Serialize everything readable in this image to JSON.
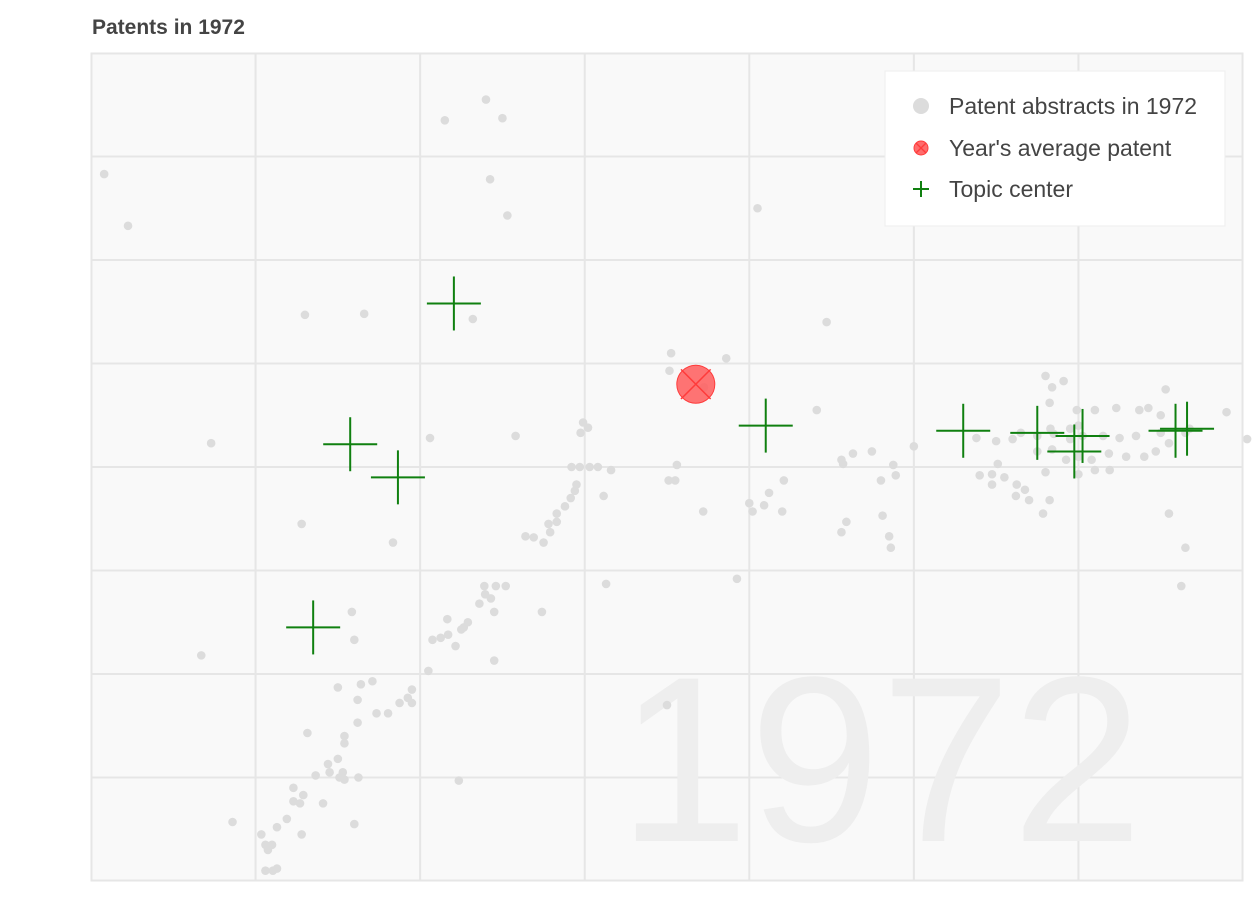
{
  "chart_data": {
    "type": "scatter",
    "title": "Patents in 1972",
    "watermark": "1972",
    "xlim": [
      0,
      14
    ],
    "ylim": [
      0,
      8
    ],
    "grid": true,
    "legend_position": "top-right",
    "colors": {
      "background": "#f9f9f9",
      "grid": "#e6e6e6",
      "patent": "#dcdcdc",
      "average_fill": "#ff5c5c",
      "average_stroke": "#ff3b3b",
      "topic": "#108010",
      "watermark": "#eeeeee",
      "title": "#444444"
    },
    "series": [
      {
        "name": "Patent abstracts in 1972",
        "marker": "dot",
        "points": [
          [
            0.16,
            6.83
          ],
          [
            0.45,
            6.33
          ],
          [
            2.6,
            5.47
          ],
          [
            3.32,
            5.48
          ],
          [
            4.3,
            7.35
          ],
          [
            4.8,
            7.55
          ],
          [
            5.0,
            7.37
          ],
          [
            4.85,
            6.78
          ],
          [
            5.06,
            6.43
          ],
          [
            4.64,
            5.43
          ],
          [
            8.1,
            6.5
          ],
          [
            8.94,
            5.4
          ],
          [
            1.46,
            4.23
          ],
          [
            4.12,
            4.28
          ],
          [
            5.16,
            4.3
          ],
          [
            5.98,
            4.43
          ],
          [
            5.95,
            4.33
          ],
          [
            6.04,
            4.38
          ],
          [
            7.03,
            4.93
          ],
          [
            7.45,
            4.77
          ],
          [
            8.82,
            4.55
          ],
          [
            7.12,
            4.02
          ],
          [
            7.02,
            3.87
          ],
          [
            7.1,
            3.87
          ],
          [
            5.84,
            4.0
          ],
          [
            5.94,
            4.0
          ],
          [
            6.06,
            4.0
          ],
          [
            6.16,
            4.0
          ],
          [
            6.32,
            3.97
          ],
          [
            5.9,
            3.83
          ],
          [
            5.88,
            3.77
          ],
          [
            6.23,
            3.72
          ],
          [
            5.83,
            3.7
          ],
          [
            5.76,
            3.62
          ],
          [
            5.66,
            3.55
          ],
          [
            5.56,
            3.45
          ],
          [
            5.66,
            3.47
          ],
          [
            5.58,
            3.37
          ],
          [
            5.28,
            3.33
          ],
          [
            5.38,
            3.32
          ],
          [
            5.5,
            3.27
          ],
          [
            7.44,
            3.57
          ],
          [
            8.0,
            3.65
          ],
          [
            8.18,
            3.63
          ],
          [
            8.42,
            3.87
          ],
          [
            8.24,
            3.75
          ],
          [
            8.4,
            3.57
          ],
          [
            9.26,
            4.13
          ],
          [
            9.12,
            4.07
          ],
          [
            9.14,
            4.03
          ],
          [
            9.49,
            4.15
          ],
          [
            10.0,
            4.2
          ],
          [
            9.75,
            4.02
          ],
          [
            9.78,
            3.92
          ],
          [
            9.6,
            3.87
          ],
          [
            9.62,
            3.53
          ],
          [
            9.72,
            3.22
          ],
          [
            9.7,
            3.33
          ],
          [
            8.04,
            3.57
          ],
          [
            7.05,
            5.1
          ],
          [
            9.12,
            3.37
          ],
          [
            9.18,
            3.47
          ],
          [
            3.67,
            3.27
          ],
          [
            2.56,
            3.45
          ],
          [
            6.26,
            2.87
          ],
          [
            7.85,
            2.92
          ],
          [
            4.78,
            2.85
          ],
          [
            4.92,
            2.85
          ],
          [
            5.04,
            2.85
          ],
          [
            4.86,
            2.73
          ],
          [
            4.79,
            2.77
          ],
          [
            4.72,
            2.68
          ],
          [
            4.9,
            2.6
          ],
          [
            5.48,
            2.6
          ],
          [
            4.33,
            2.53
          ],
          [
            4.58,
            2.5
          ],
          [
            4.5,
            2.43
          ],
          [
            4.53,
            2.45
          ],
          [
            4.25,
            2.35
          ],
          [
            4.15,
            2.33
          ],
          [
            4.34,
            2.38
          ],
          [
            4.43,
            2.27
          ],
          [
            4.9,
            2.13
          ],
          [
            4.1,
            2.03
          ],
          [
            3.17,
            2.6
          ],
          [
            3.2,
            2.33
          ],
          [
            1.34,
            2.18
          ],
          [
            3.0,
            1.87
          ],
          [
            3.28,
            1.9
          ],
          [
            3.42,
            1.93
          ],
          [
            3.24,
            1.75
          ],
          [
            3.9,
            1.85
          ],
          [
            3.9,
            1.72
          ],
          [
            3.85,
            1.77
          ],
          [
            3.75,
            1.72
          ],
          [
            3.61,
            1.62
          ],
          [
            3.47,
            1.62
          ],
          [
            3.24,
            1.53
          ],
          [
            3.08,
            1.4
          ],
          [
            3.08,
            1.33
          ],
          [
            2.63,
            1.43
          ],
          [
            3.0,
            1.18
          ],
          [
            2.88,
            1.13
          ],
          [
            3.06,
            1.05
          ],
          [
            3.02,
            1.0
          ],
          [
            3.08,
            0.98
          ],
          [
            3.25,
            1.0
          ],
          [
            2.9,
            1.05
          ],
          [
            2.73,
            1.02
          ],
          [
            2.46,
            0.9
          ],
          [
            2.46,
            0.77
          ],
          [
            2.58,
            0.83
          ],
          [
            2.54,
            0.75
          ],
          [
            2.38,
            0.6
          ],
          [
            2.82,
            0.75
          ],
          [
            2.56,
            0.45
          ],
          [
            2.15,
            0.3
          ],
          [
            2.07,
            0.45
          ],
          [
            2.12,
            0.35
          ],
          [
            2.26,
            0.52
          ],
          [
            2.2,
            0.35
          ],
          [
            1.72,
            0.57
          ],
          [
            3.2,
            0.55
          ],
          [
            4.47,
            0.97
          ],
          [
            2.12,
            0.1
          ],
          [
            2.21,
            0.1
          ],
          [
            2.26,
            0.12
          ],
          [
            7.0,
            1.7
          ],
          [
            7.72,
            5.05
          ],
          [
            10.76,
            4.28
          ],
          [
            11.0,
            4.25
          ],
          [
            11.2,
            4.27
          ],
          [
            11.3,
            4.33
          ],
          [
            11.5,
            4.3
          ],
          [
            11.7,
            4.32
          ],
          [
            11.9,
            4.27
          ],
          [
            12.05,
            4.3
          ],
          [
            12.3,
            4.3
          ],
          [
            12.5,
            4.28
          ],
          [
            12.7,
            4.3
          ],
          [
            13.0,
            4.33
          ],
          [
            13.35,
            4.37
          ],
          [
            13.8,
            4.53
          ],
          [
            14.05,
            4.27
          ],
          [
            11.6,
            4.88
          ],
          [
            11.68,
            4.77
          ],
          [
            11.82,
            4.83
          ],
          [
            11.65,
            4.62
          ],
          [
            11.98,
            4.55
          ],
          [
            12.2,
            4.55
          ],
          [
            12.46,
            4.57
          ],
          [
            12.74,
            4.55
          ],
          [
            12.85,
            4.57
          ],
          [
            13.06,
            4.75
          ],
          [
            13.0,
            4.5
          ],
          [
            13.3,
            4.33
          ],
          [
            11.5,
            4.15
          ],
          [
            11.68,
            4.17
          ],
          [
            11.85,
            4.07
          ],
          [
            12.0,
            4.1
          ],
          [
            12.16,
            4.07
          ],
          [
            12.37,
            4.13
          ],
          [
            12.58,
            4.1
          ],
          [
            12.8,
            4.1
          ],
          [
            12.94,
            4.15
          ],
          [
            13.1,
            4.23
          ],
          [
            11.02,
            4.03
          ],
          [
            10.95,
            3.93
          ],
          [
            10.8,
            3.92
          ],
          [
            10.95,
            3.83
          ],
          [
            11.25,
            3.83
          ],
          [
            11.1,
            3.9
          ],
          [
            11.35,
            3.78
          ],
          [
            11.6,
            3.95
          ],
          [
            11.65,
            3.68
          ],
          [
            12.0,
            3.93
          ],
          [
            12.2,
            3.97
          ],
          [
            12.38,
            3.97
          ],
          [
            11.24,
            3.72
          ],
          [
            11.4,
            3.68
          ],
          [
            11.57,
            3.55
          ],
          [
            13.1,
            3.55
          ],
          [
            13.3,
            3.22
          ],
          [
            13.25,
            2.85
          ],
          [
            11.66,
            4.37
          ],
          [
            11.9,
            4.37
          ],
          [
            12.0,
            4.4
          ]
        ]
      },
      {
        "name": "Year's average patent",
        "marker": "crossed-circle",
        "points": [
          [
            7.35,
            4.8
          ]
        ]
      },
      {
        "name": "Topic center",
        "marker": "plus",
        "points": [
          [
            4.41,
            5.58
          ],
          [
            3.15,
            4.22
          ],
          [
            3.73,
            3.9
          ],
          [
            2.7,
            2.45
          ],
          [
            8.2,
            4.4
          ],
          [
            10.6,
            4.35
          ],
          [
            11.5,
            4.33
          ],
          [
            11.95,
            4.15
          ],
          [
            12.05,
            4.3
          ],
          [
            13.18,
            4.35
          ],
          [
            13.32,
            4.37
          ]
        ]
      }
    ]
  }
}
